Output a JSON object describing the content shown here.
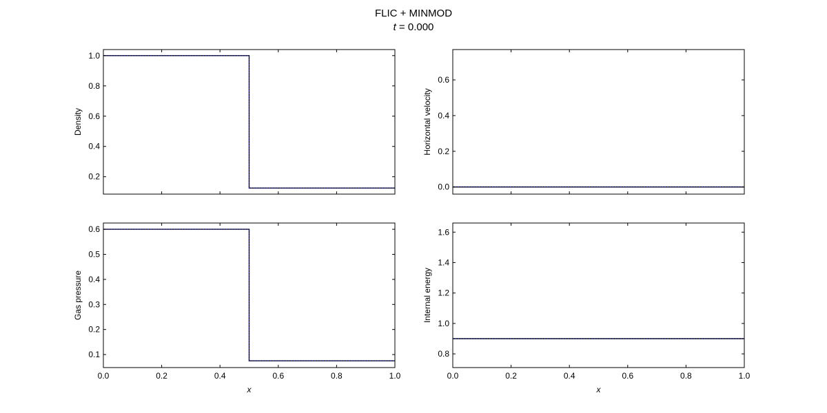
{
  "figure": {
    "title_line1": "FLIC + MINMOD",
    "title_line2_var": "t",
    "title_line2_rest": " = 0.000",
    "line_color": "#000000",
    "marker_color": "#1a1aff"
  },
  "chart_data": [
    {
      "type": "line",
      "title": "",
      "xlabel": "",
      "ylabel": "Density",
      "xlim": [
        0.0,
        1.0
      ],
      "ylim": [
        0.085,
        1.04
      ],
      "xticks": [
        0.0,
        0.2,
        0.4,
        0.6,
        0.8,
        1.0
      ],
      "xtick_labels": [
        "",
        "",
        "",
        "",
        "",
        ""
      ],
      "yticks": [
        0.2,
        0.4,
        0.6,
        0.8,
        1.0
      ],
      "ytick_labels": [
        "0.2",
        "0.4",
        "0.6",
        "0.8",
        "1.0"
      ],
      "series": [
        {
          "x": [
            0.0,
            0.5,
            0.5,
            1.0
          ],
          "y": [
            1.0,
            1.0,
            0.125,
            0.125
          ]
        }
      ]
    },
    {
      "type": "line",
      "title": "",
      "xlabel": "",
      "ylabel": "Horizontal velocity",
      "xlim": [
        0.0,
        1.0
      ],
      "ylim": [
        -0.04,
        0.77
      ],
      "xticks": [
        0.0,
        0.2,
        0.4,
        0.6,
        0.8,
        1.0
      ],
      "xtick_labels": [
        "",
        "",
        "",
        "",
        "",
        ""
      ],
      "yticks": [
        0.0,
        0.2,
        0.4,
        0.6
      ],
      "ytick_labels": [
        "0.0",
        "0.2",
        "0.4",
        "0.6"
      ],
      "series": [
        {
          "x": [
            0.0,
            1.0
          ],
          "y": [
            0.0,
            0.0
          ]
        }
      ]
    },
    {
      "type": "line",
      "title": "",
      "xlabel": "x",
      "ylabel": "Gas pressure",
      "xlim": [
        0.0,
        1.0
      ],
      "ylim": [
        0.048,
        0.625
      ],
      "xticks": [
        0.0,
        0.2,
        0.4,
        0.6,
        0.8,
        1.0
      ],
      "xtick_labels": [
        "0.0",
        "0.2",
        "0.4",
        "0.6",
        "0.8",
        "1.0"
      ],
      "yticks": [
        0.1,
        0.2,
        0.3,
        0.4,
        0.5,
        0.6
      ],
      "ytick_labels": [
        "0.1",
        "0.2",
        "0.3",
        "0.4",
        "0.5",
        "0.6"
      ],
      "series": [
        {
          "x": [
            0.0,
            0.5,
            0.5,
            1.0
          ],
          "y": [
            0.6,
            0.6,
            0.075,
            0.075
          ]
        }
      ]
    },
    {
      "type": "line",
      "title": "",
      "xlabel": "x",
      "ylabel": "Internal energy",
      "xlim": [
        0.0,
        1.0
      ],
      "ylim": [
        0.71,
        1.66
      ],
      "xticks": [
        0.0,
        0.2,
        0.4,
        0.6,
        0.8,
        1.0
      ],
      "xtick_labels": [
        "0.0",
        "0.2",
        "0.4",
        "0.6",
        "0.8",
        "1.0"
      ],
      "yticks": [
        0.8,
        1.0,
        1.2,
        1.4,
        1.6
      ],
      "ytick_labels": [
        "0.8",
        "1.0",
        "1.2",
        "1.4",
        "1.6"
      ],
      "series": [
        {
          "x": [
            0.0,
            1.0
          ],
          "y": [
            0.9,
            0.9
          ]
        }
      ]
    }
  ]
}
